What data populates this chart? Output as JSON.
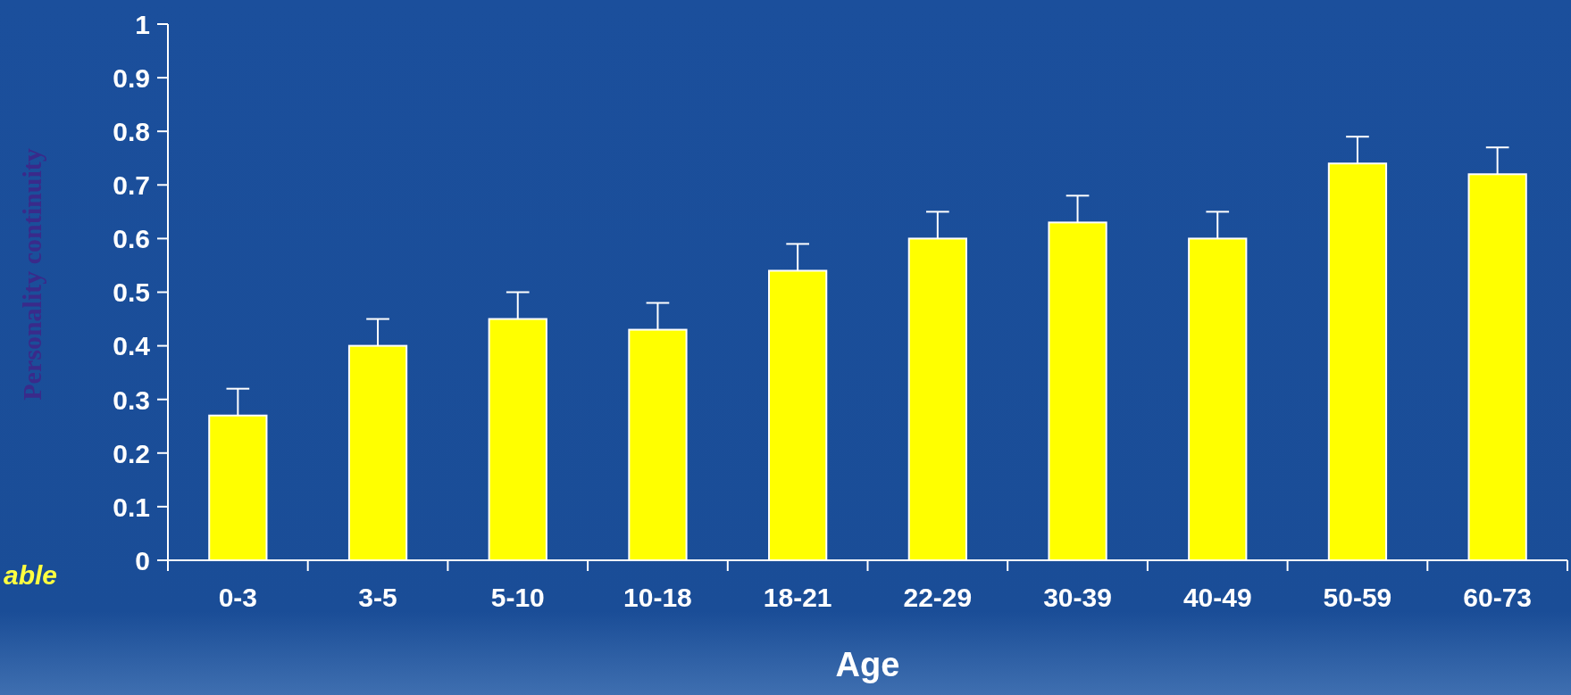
{
  "chart_data": {
    "type": "bar",
    "xlabel": "Age",
    "ylabel": "Personality continuity",
    "categories": [
      "0-3",
      "3-5",
      "5-10",
      "10-18",
      "18-21",
      "22-29",
      "30-39",
      "40-49",
      "50-59",
      "60-73"
    ],
    "values": [
      0.27,
      0.4,
      0.45,
      0.43,
      0.54,
      0.6,
      0.63,
      0.6,
      0.74,
      0.72
    ],
    "errors": [
      [
        0.27,
        0.32
      ],
      [
        0.4,
        0.45
      ],
      [
        0.45,
        0.5
      ],
      [
        0.43,
        0.48
      ],
      [
        0.54,
        0.59
      ],
      [
        0.6,
        0.65
      ],
      [
        0.63,
        0.68
      ],
      [
        0.6,
        0.65
      ],
      [
        0.74,
        0.79
      ],
      [
        0.72,
        0.77
      ]
    ],
    "color": "#ffff00",
    "ylim": [
      0,
      1
    ],
    "yticks": [
      0,
      0.1,
      0.2,
      0.3,
      0.4,
      0.5,
      0.6,
      0.7,
      0.8,
      0.9,
      1
    ],
    "annotations": [
      "able"
    ]
  }
}
